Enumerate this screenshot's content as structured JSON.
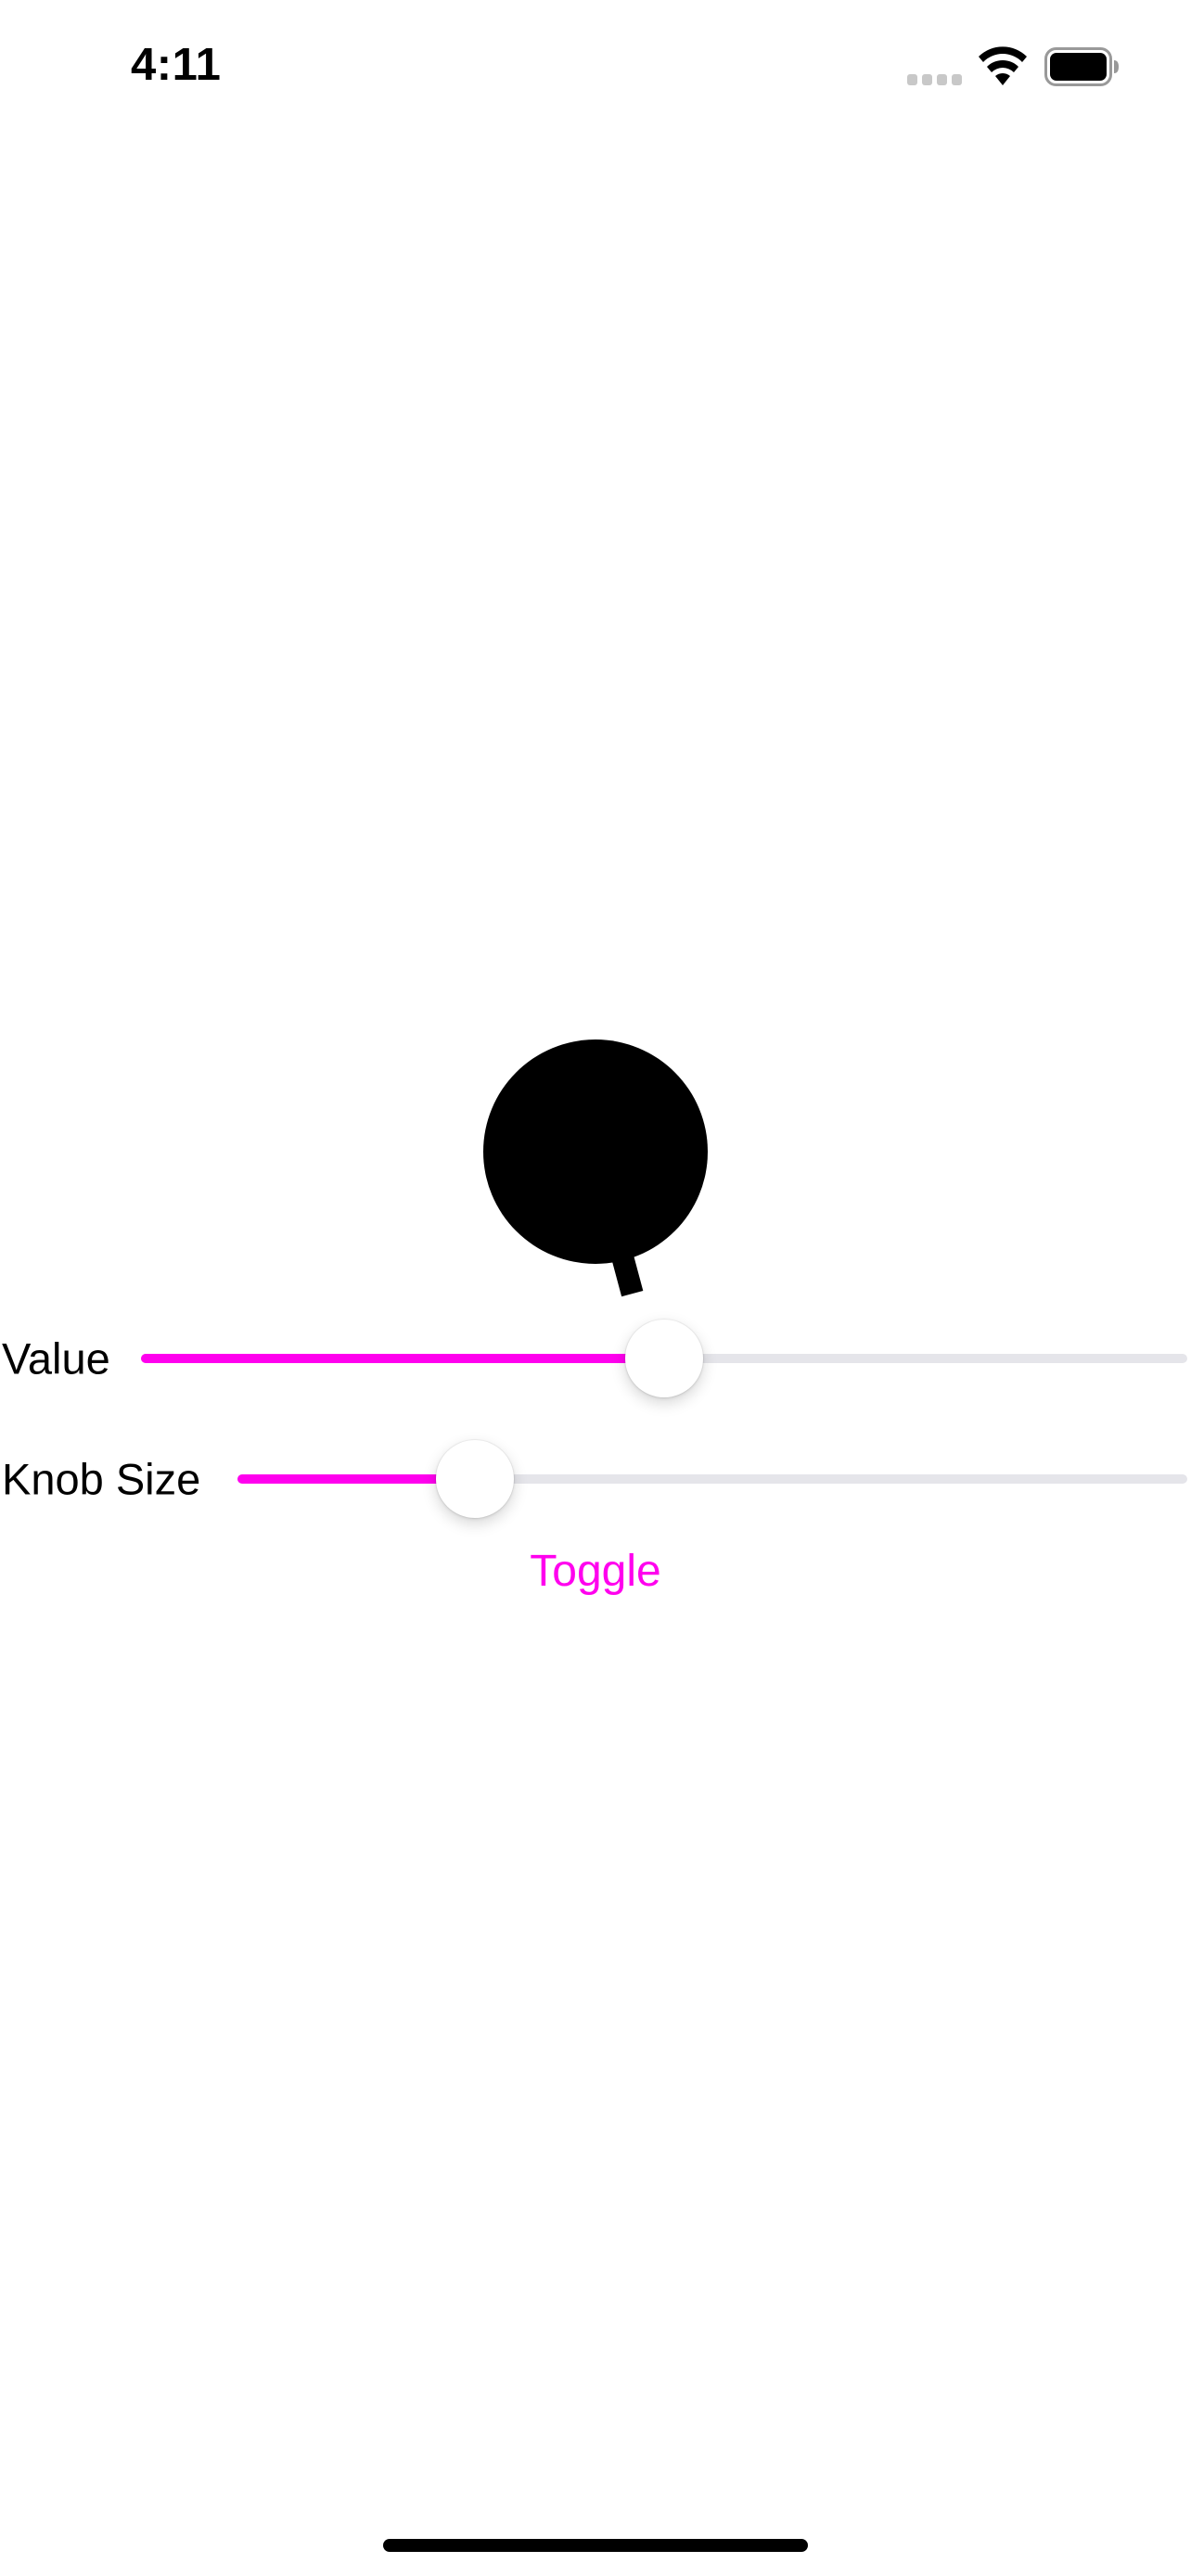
{
  "status_bar": {
    "time": "4:11",
    "signal_icon": "cellular-signal-icon",
    "wifi_icon": "wifi-icon",
    "battery_icon": "battery-icon"
  },
  "colors": {
    "accent": "#ff00ee",
    "track": "#e5e5ea",
    "knob": "#000000",
    "background": "#ffffff"
  },
  "knob": {
    "icon": "rotary-knob-icon"
  },
  "sliders": [
    {
      "label": "Value",
      "value": 0.5
    },
    {
      "label": "Knob Size",
      "value": 0.25
    }
  ],
  "toggle": {
    "label": "Toggle"
  }
}
